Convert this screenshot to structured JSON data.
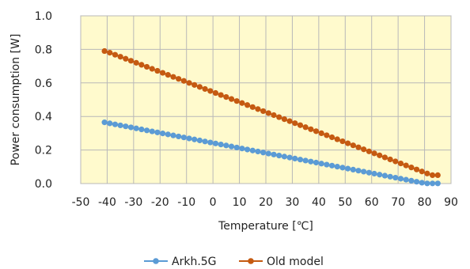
{
  "chart_data": {
    "type": "line",
    "title": "",
    "xlabel": "Temperature [℃]",
    "ylabel": "Power consumption [W]",
    "xlim": [
      -50,
      90
    ],
    "ylim": [
      0,
      1.0
    ],
    "x_ticks": [
      -50,
      -40,
      -30,
      -20,
      -10,
      0,
      10,
      20,
      30,
      40,
      50,
      60,
      70,
      80,
      90
    ],
    "y_ticks": [
      0,
      0.2,
      0.4,
      0.6,
      0.8,
      1.0
    ],
    "x_tick_labels": [
      "-50",
      "-40",
      "-30",
      "-20",
      "-10",
      "0",
      "10",
      "20",
      "30",
      "40",
      "50",
      "60",
      "70",
      "80",
      "90"
    ],
    "y_tick_labels": [
      "0.0",
      "0.2",
      "0.4",
      "0.6",
      "0.8",
      "1.0"
    ],
    "grid": true,
    "legend_position": "bottom",
    "plot_background": "#fffacd",
    "series": [
      {
        "name": "Arkh.5G",
        "color": "#5b9bd5",
        "x": [
          -41,
          -39,
          -37,
          -35,
          -33,
          -31,
          -29,
          -27,
          -25,
          -23,
          -21,
          -19,
          -17,
          -15,
          -13,
          -11,
          -9,
          -7,
          -5,
          -3,
          -1,
          1,
          3,
          5,
          7,
          9,
          11,
          13,
          15,
          17,
          19,
          21,
          23,
          25,
          27,
          29,
          31,
          33,
          35,
          37,
          39,
          41,
          43,
          45,
          47,
          49,
          51,
          53,
          55,
          57,
          59,
          61,
          63,
          65,
          67,
          69,
          71,
          73,
          75,
          77,
          79,
          81,
          83,
          85
        ],
        "y": [
          0.365,
          0.359,
          0.353,
          0.347,
          0.341,
          0.335,
          0.329,
          0.323,
          0.317,
          0.311,
          0.305,
          0.299,
          0.293,
          0.287,
          0.281,
          0.275,
          0.269,
          0.263,
          0.257,
          0.251,
          0.245,
          0.239,
          0.233,
          0.227,
          0.221,
          0.215,
          0.209,
          0.203,
          0.197,
          0.191,
          0.185,
          0.179,
          0.173,
          0.167,
          0.161,
          0.155,
          0.149,
          0.143,
          0.137,
          0.131,
          0.125,
          0.119,
          0.113,
          0.107,
          0.101,
          0.095,
          0.089,
          0.083,
          0.077,
          0.071,
          0.065,
          0.059,
          0.053,
          0.047,
          0.041,
          0.035,
          0.029,
          0.023,
          0.017,
          0.011,
          0.005,
          0.001,
          0.001,
          0.001
        ]
      },
      {
        "name": "Old model",
        "color": "#c55a11",
        "x": [
          -41,
          -39,
          -37,
          -35,
          -33,
          -31,
          -29,
          -27,
          -25,
          -23,
          -21,
          -19,
          -17,
          -15,
          -13,
          -11,
          -9,
          -7,
          -5,
          -3,
          -1,
          1,
          3,
          5,
          7,
          9,
          11,
          13,
          15,
          17,
          19,
          21,
          23,
          25,
          27,
          29,
          31,
          33,
          35,
          37,
          39,
          41,
          43,
          45,
          47,
          49,
          51,
          53,
          55,
          57,
          59,
          61,
          63,
          65,
          67,
          69,
          71,
          73,
          75,
          77,
          79,
          81,
          83,
          85
        ],
        "y": [
          0.79,
          0.78,
          0.768,
          0.756,
          0.744,
          0.732,
          0.72,
          0.708,
          0.696,
          0.684,
          0.672,
          0.66,
          0.648,
          0.636,
          0.624,
          0.612,
          0.6,
          0.588,
          0.576,
          0.564,
          0.552,
          0.54,
          0.528,
          0.516,
          0.504,
          0.492,
          0.48,
          0.468,
          0.456,
          0.444,
          0.432,
          0.42,
          0.408,
          0.396,
          0.384,
          0.372,
          0.36,
          0.348,
          0.336,
          0.324,
          0.312,
          0.3,
          0.288,
          0.276,
          0.264,
          0.252,
          0.24,
          0.228,
          0.216,
          0.204,
          0.192,
          0.18,
          0.168,
          0.156,
          0.144,
          0.132,
          0.12,
          0.108,
          0.096,
          0.084,
          0.072,
          0.06,
          0.05,
          0.05
        ]
      }
    ]
  }
}
